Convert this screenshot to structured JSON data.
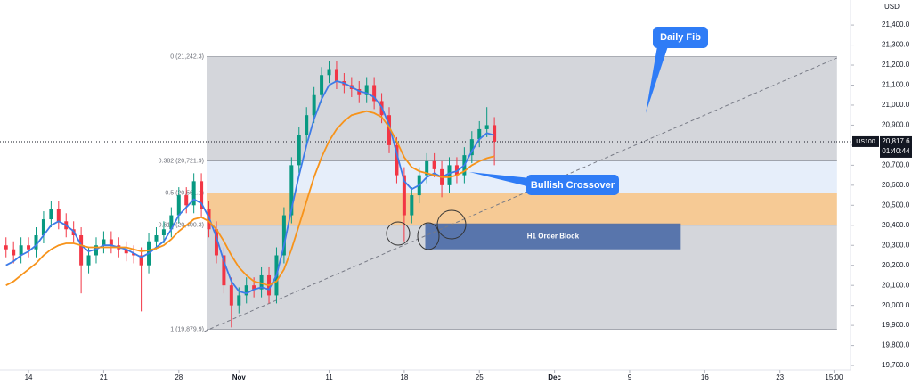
{
  "chart_data": {
    "type": "candlestick",
    "currency": "USD",
    "symbol": "US100",
    "last_price": {
      "value": 20817.6,
      "label": "20,817.6"
    },
    "countdown": "01:40:44",
    "xlim": [
      -1.9,
      54.7
    ],
    "ylim": [
      19678,
      21525
    ],
    "xticks": [
      {
        "value": 0,
        "label": "14"
      },
      {
        "value": 5,
        "label": "21"
      },
      {
        "value": 10,
        "label": "28"
      },
      {
        "value": 14,
        "label": "Nov"
      },
      {
        "value": 20,
        "label": "11"
      },
      {
        "value": 25,
        "label": "18"
      },
      {
        "value": 30,
        "label": "25"
      },
      {
        "value": 35,
        "label": "Dec"
      },
      {
        "value": 40,
        "label": "9"
      },
      {
        "value": 45,
        "label": "16"
      },
      {
        "value": 50,
        "label": "23"
      },
      {
        "value": 53.6,
        "label": "15:00"
      }
    ],
    "yticks": [
      {
        "value": 21400,
        "label": "21,400.0"
      },
      {
        "value": 21300,
        "label": "21,300.0"
      },
      {
        "value": 21200,
        "label": "21,200.0"
      },
      {
        "value": 21100,
        "label": "21,100.0"
      },
      {
        "value": 21000,
        "label": "21,000.0"
      },
      {
        "value": 20900,
        "label": "20,900.0"
      },
      {
        "value": 20800,
        "label": "20,800.0"
      },
      {
        "value": 20700,
        "label": "20,700.0"
      },
      {
        "value": 20600,
        "label": "20,600.0"
      },
      {
        "value": 20500,
        "label": "20,500.0"
      },
      {
        "value": 20400,
        "label": "20,400.0"
      },
      {
        "value": 20300,
        "label": "20,300.0"
      },
      {
        "value": 20200,
        "label": "20,200.0"
      },
      {
        "value": 20100,
        "label": "20,100.0"
      },
      {
        "value": 20000,
        "label": "20,000.0"
      },
      {
        "value": 19900,
        "label": "19,900.0"
      },
      {
        "value": 19800,
        "label": "19,800.0"
      },
      {
        "value": 19700,
        "label": "19,700.0"
      }
    ],
    "up_color": "#089981",
    "down_color": "#f23645",
    "x": [
      -1.5,
      -1,
      -0.5,
      0,
      0.5,
      1,
      1.5,
      2,
      2.5,
      3,
      3.5,
      4,
      4.5,
      5,
      5.5,
      6,
      6.5,
      7,
      7.5,
      8,
      8.5,
      9,
      9.5,
      10,
      10.5,
      11,
      11.5,
      12,
      12.5,
      13,
      13.5,
      14,
      14.5,
      15,
      15.5,
      16,
      16.5,
      17,
      17.5,
      18,
      18.5,
      19,
      19.5,
      20,
      20.5,
      21,
      21.5,
      22,
      22.5,
      23,
      23.5,
      24,
      24.5,
      25,
      25.5,
      26,
      26.5,
      27,
      27.5,
      28,
      28.5,
      29,
      29.5,
      30,
      30.5,
      31
    ],
    "open": [
      20300,
      20280,
      20250,
      20300,
      20280,
      20350,
      20430,
      20480,
      20420,
      20380,
      20350,
      20200,
      20250,
      20300,
      20330,
      20300,
      20280,
      20260,
      20250,
      20200,
      20320,
      20350,
      20380,
      20450,
      20550,
      20500,
      20620,
      20480,
      20380,
      20250,
      20100,
      20000,
      20050,
      20100,
      20080,
      20150,
      20050,
      20250,
      20450,
      20700,
      20850,
      20950,
      21050,
      21150,
      21180,
      21120,
      21100,
      21080,
      21050,
      21100,
      21020,
      20950,
      20800,
      20650,
      20450,
      20550,
      20650,
      20720,
      20680,
      20600,
      20700,
      20650,
      20750,
      20830,
      20880,
      20900
    ],
    "high": [
      20340,
      20320,
      20340,
      20340,
      20390,
      20470,
      20520,
      20520,
      20460,
      20420,
      20390,
      20290,
      20340,
      20370,
      20370,
      20340,
      20320,
      20300,
      20290,
      20360,
      20390,
      20420,
      20490,
      20590,
      20590,
      20660,
      20660,
      20520,
      20420,
      20290,
      20140,
      20090,
      20140,
      20140,
      20190,
      20190,
      20290,
      20490,
      20740,
      20890,
      20990,
      21090,
      21190,
      21220,
      21220,
      21160,
      21140,
      21120,
      21140,
      21140,
      21060,
      20990,
      20840,
      20690,
      20590,
      20690,
      20760,
      20760,
      20720,
      20740,
      20740,
      20790,
      20870,
      20920,
      20990,
      20940
    ],
    "low": [
      20240,
      20210,
      20210,
      20240,
      20240,
      20310,
      20390,
      20380,
      20340,
      20310,
      20060,
      20160,
      20210,
      20260,
      20260,
      20240,
      20220,
      20210,
      19970,
      20160,
      20280,
      20310,
      20340,
      20410,
      20460,
      20460,
      20440,
      20340,
      20210,
      20060,
      19890,
      19960,
      20010,
      20040,
      20040,
      20010,
      20010,
      20210,
      20410,
      20660,
      20810,
      20910,
      21010,
      21110,
      21080,
      21060,
      21040,
      21010,
      21010,
      20980,
      20910,
      20760,
      20610,
      20320,
      20410,
      20510,
      20610,
      20640,
      20540,
      20560,
      20610,
      20610,
      20710,
      20790,
      20840,
      20700
    ],
    "close": [
      20280,
      20250,
      20300,
      20280,
      20350,
      20430,
      20480,
      20420,
      20380,
      20350,
      20200,
      20250,
      20300,
      20330,
      20300,
      20280,
      20260,
      20250,
      20200,
      20320,
      20350,
      20380,
      20450,
      20550,
      20500,
      20620,
      20480,
      20380,
      20250,
      20100,
      20000,
      20050,
      20100,
      20080,
      20150,
      20050,
      20250,
      20450,
      20700,
      20850,
      20950,
      21050,
      21150,
      21180,
      21120,
      21100,
      21080,
      21050,
      21100,
      21020,
      20950,
      20800,
      20650,
      20450,
      20550,
      20650,
      20720,
      20680,
      20600,
      20700,
      20650,
      20750,
      20830,
      20880,
      20900,
      20817.6
    ],
    "series": [
      {
        "color": "#3d7be8",
        "values": [
          20200,
          20220,
          20250,
          20270,
          20300,
          20350,
          20400,
          20420,
          20400,
          20370,
          20300,
          20270,
          20280,
          20300,
          20300,
          20290,
          20280,
          20260,
          20240,
          20260,
          20290,
          20320,
          20380,
          20450,
          20490,
          20530,
          20510,
          20440,
          20340,
          20220,
          20120,
          20070,
          20060,
          20080,
          20090,
          20080,
          20150,
          20300,
          20480,
          20650,
          20800,
          20930,
          21030,
          21100,
          21120,
          21110,
          21090,
          21070,
          21060,
          21040,
          20990,
          20900,
          20760,
          20620,
          20580,
          20600,
          20640,
          20660,
          20640,
          20660,
          20670,
          20700,
          20770,
          20830,
          20860,
          20850
        ]
      },
      {
        "color": "#f7931a",
        "values": [
          20100,
          20120,
          20150,
          20180,
          20210,
          20250,
          20280,
          20300,
          20310,
          20310,
          20300,
          20290,
          20290,
          20290,
          20290,
          20290,
          20290,
          20280,
          20270,
          20275,
          20285,
          20300,
          20330,
          20370,
          20400,
          20430,
          20440,
          20420,
          20380,
          20320,
          20250,
          20190,
          20150,
          20120,
          20110,
          20100,
          20120,
          20180,
          20280,
          20400,
          20520,
          20640,
          20740,
          20820,
          20880,
          20920,
          20950,
          20960,
          20970,
          20960,
          20940,
          20890,
          20820,
          20740,
          20690,
          20670,
          20660,
          20650,
          20640,
          20640,
          20650,
          20670,
          20700,
          20720,
          20735,
          20745
        ]
      }
    ],
    "fib": {
      "xlim": [
        11.85,
        53.8
      ],
      "levels": [
        {
          "value": 21242.3,
          "label": "0 (21,242.3)"
        },
        {
          "value": 20721.9,
          "label": "0.382 (20,721.9)"
        },
        {
          "value": 20561.1,
          "label": "0.5 (20,561.1)"
        },
        {
          "value": 20400.3,
          "label": "0.618 (20,400.3)"
        },
        {
          "value": 19879.9,
          "label": "1 (19,879.9)"
        }
      ],
      "colors": [
        "#cfd1d7",
        "#e3ecfa",
        "#f5c48a",
        "#cfd1d7"
      ]
    },
    "order_block": {
      "label": "H1 Order Block",
      "xlim": [
        26.4,
        43.4
      ],
      "ylim": [
        20280,
        20409
      ],
      "color": "#4a6aa6"
    },
    "trendline": {
      "x": [
        11.7,
        53.8
      ],
      "y": [
        19870,
        21236
      ]
    },
    "annotations": [
      "Daily Fib",
      "Bullish Crossover"
    ]
  }
}
